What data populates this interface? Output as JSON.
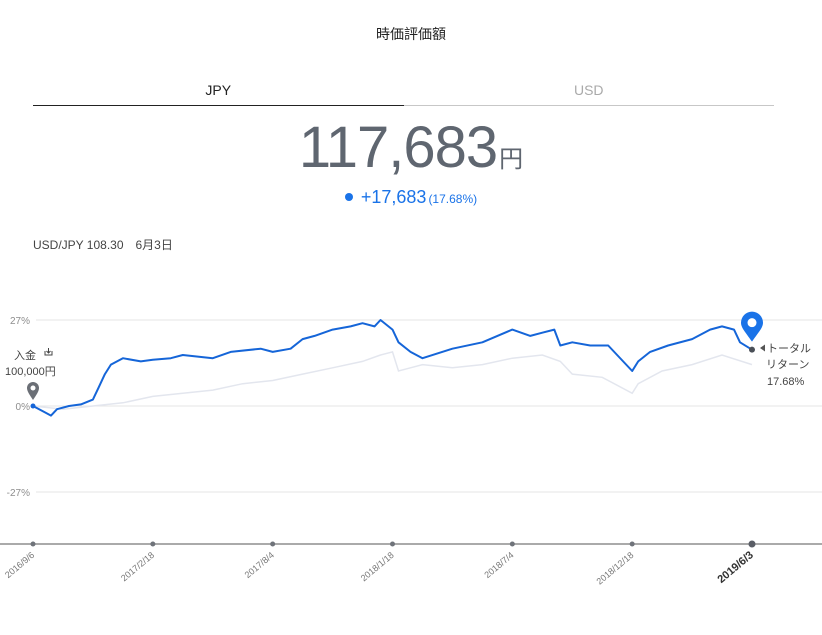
{
  "page": {
    "title": "時価評価額",
    "tabs": [
      {
        "label": "JPY",
        "active": true
      },
      {
        "label": "USD",
        "active": false
      }
    ],
    "valuation": {
      "amount": "117,683",
      "unit": "円"
    },
    "change": {
      "amount": "+17,683",
      "percent": "(17.68%)"
    },
    "fx": {
      "pair_rate": "USD/JPY 108.30",
      "date": "6月3日"
    }
  },
  "colors": {
    "primary_line": "#1565d8",
    "benchmark_line": "#e3e6ee",
    "grid": "#e6e6e6",
    "axis": "#8e8e8e",
    "accent": "#1a73e8",
    "marker_gray": "#6b6f76"
  },
  "chart_data": {
    "type": "line",
    "title": "",
    "xlabel": "",
    "ylabel": "",
    "y_ticks": [
      {
        "value": 27,
        "label": "27%"
      },
      {
        "value": 0,
        "label": "0%"
      },
      {
        "value": -27,
        "label": "-27%"
      }
    ],
    "ylim": [
      -44,
      33
    ],
    "x_ticks": [
      {
        "t": 0,
        "label": "2016/9/6",
        "bold": false
      },
      {
        "t": 0.2,
        "label": "2017/2/18",
        "bold": false
      },
      {
        "t": 0.4,
        "label": "2017/8/4",
        "bold": false
      },
      {
        "t": 0.6,
        "label": "2018/1/18",
        "bold": false
      },
      {
        "t": 0.8,
        "label": "2018/7/4",
        "bold": false
      },
      {
        "t": 1.0,
        "label": "2018/12/18",
        "bold": false
      },
      {
        "t": 1.2,
        "label": "2019/6/3",
        "bold": true
      }
    ],
    "xlim": [
      0,
      1.3
    ],
    "start_marker": {
      "label_line1": "入金",
      "label_line2": "100,000円",
      "value": 0
    },
    "end_marker": {
      "label_line1": "トータル",
      "label_line2": "リターン",
      "label_line3": "17.68%",
      "value": 17.68
    },
    "series": [
      {
        "role": "primary",
        "x": [
          0,
          0.02,
          0.03,
          0.04,
          0.06,
          0.08,
          0.1,
          0.11,
          0.12,
          0.13,
          0.15,
          0.18,
          0.2,
          0.23,
          0.25,
          0.3,
          0.33,
          0.38,
          0.4,
          0.43,
          0.45,
          0.47,
          0.5,
          0.53,
          0.55,
          0.57,
          0.58,
          0.6,
          0.61,
          0.63,
          0.65,
          0.7,
          0.75,
          0.8,
          0.83,
          0.85,
          0.87,
          0.88,
          0.9,
          0.93,
          0.96,
          1.0,
          1.01,
          1.03,
          1.06,
          1.1,
          1.13,
          1.15,
          1.17,
          1.18,
          1.2
        ],
        "values": [
          0,
          -2,
          -3,
          -1,
          0,
          0.5,
          2,
          6,
          10,
          13,
          15,
          14,
          14.5,
          15,
          16,
          15,
          17,
          18,
          17,
          18,
          21,
          22,
          24,
          25,
          26,
          25,
          27,
          24,
          20,
          17,
          15,
          18,
          20,
          24,
          22,
          23,
          24,
          19,
          20,
          19,
          19,
          11,
          14,
          17,
          19,
          21,
          24,
          25,
          24,
          20,
          17.68
        ]
      },
      {
        "role": "benchmark",
        "x": [
          0,
          0.05,
          0.1,
          0.15,
          0.2,
          0.25,
          0.3,
          0.35,
          0.4,
          0.45,
          0.5,
          0.55,
          0.58,
          0.6,
          0.61,
          0.63,
          0.65,
          0.7,
          0.75,
          0.8,
          0.85,
          0.88,
          0.9,
          0.95,
          1.0,
          1.01,
          1.05,
          1.1,
          1.15,
          1.2
        ],
        "values": [
          0,
          -1,
          0,
          1,
          3,
          4,
          5,
          7,
          8,
          10,
          12,
          14,
          16,
          17,
          11,
          12,
          13,
          12,
          13,
          15,
          16,
          14,
          10,
          9,
          4,
          7,
          11,
          13,
          16,
          13
        ]
      }
    ]
  }
}
